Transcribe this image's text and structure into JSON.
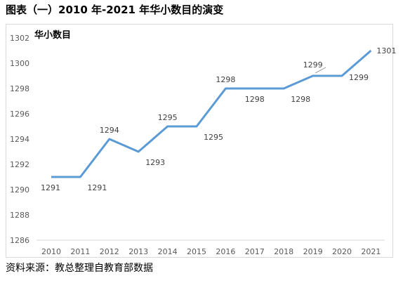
{
  "caption": {
    "prefix": "图表（一）",
    "years": "2010 年-2021 年",
    "suffix": "华小数目的演变"
  },
  "source": "资料来源：教总整理自教育部数据",
  "chart_data": {
    "type": "line",
    "title": "华小数目",
    "xlabel": "",
    "ylabel": "",
    "categories": [
      "2010",
      "2011",
      "2012",
      "2013",
      "2014",
      "2015",
      "2016",
      "2017",
      "2018",
      "2019",
      "2020",
      "2021"
    ],
    "series": [
      {
        "values": [
          1291,
          1291,
          1294,
          1293,
          1295,
          1295,
          1298,
          1298,
          1298,
          1299,
          1299,
          1301
        ]
      }
    ],
    "ylim": [
      1286,
      1302
    ],
    "yticks": [
      1286,
      1288,
      1290,
      1292,
      1294,
      1296,
      1298,
      1300,
      1302
    ],
    "data_labels": [
      "1291",
      "1291",
      "1294",
      "1293",
      "1295",
      "1295",
      "1298",
      "1298",
      "1298",
      "1299",
      "1299",
      "1301"
    ],
    "grid": false,
    "legend": "none",
    "line_color": "#5b9bd5"
  }
}
